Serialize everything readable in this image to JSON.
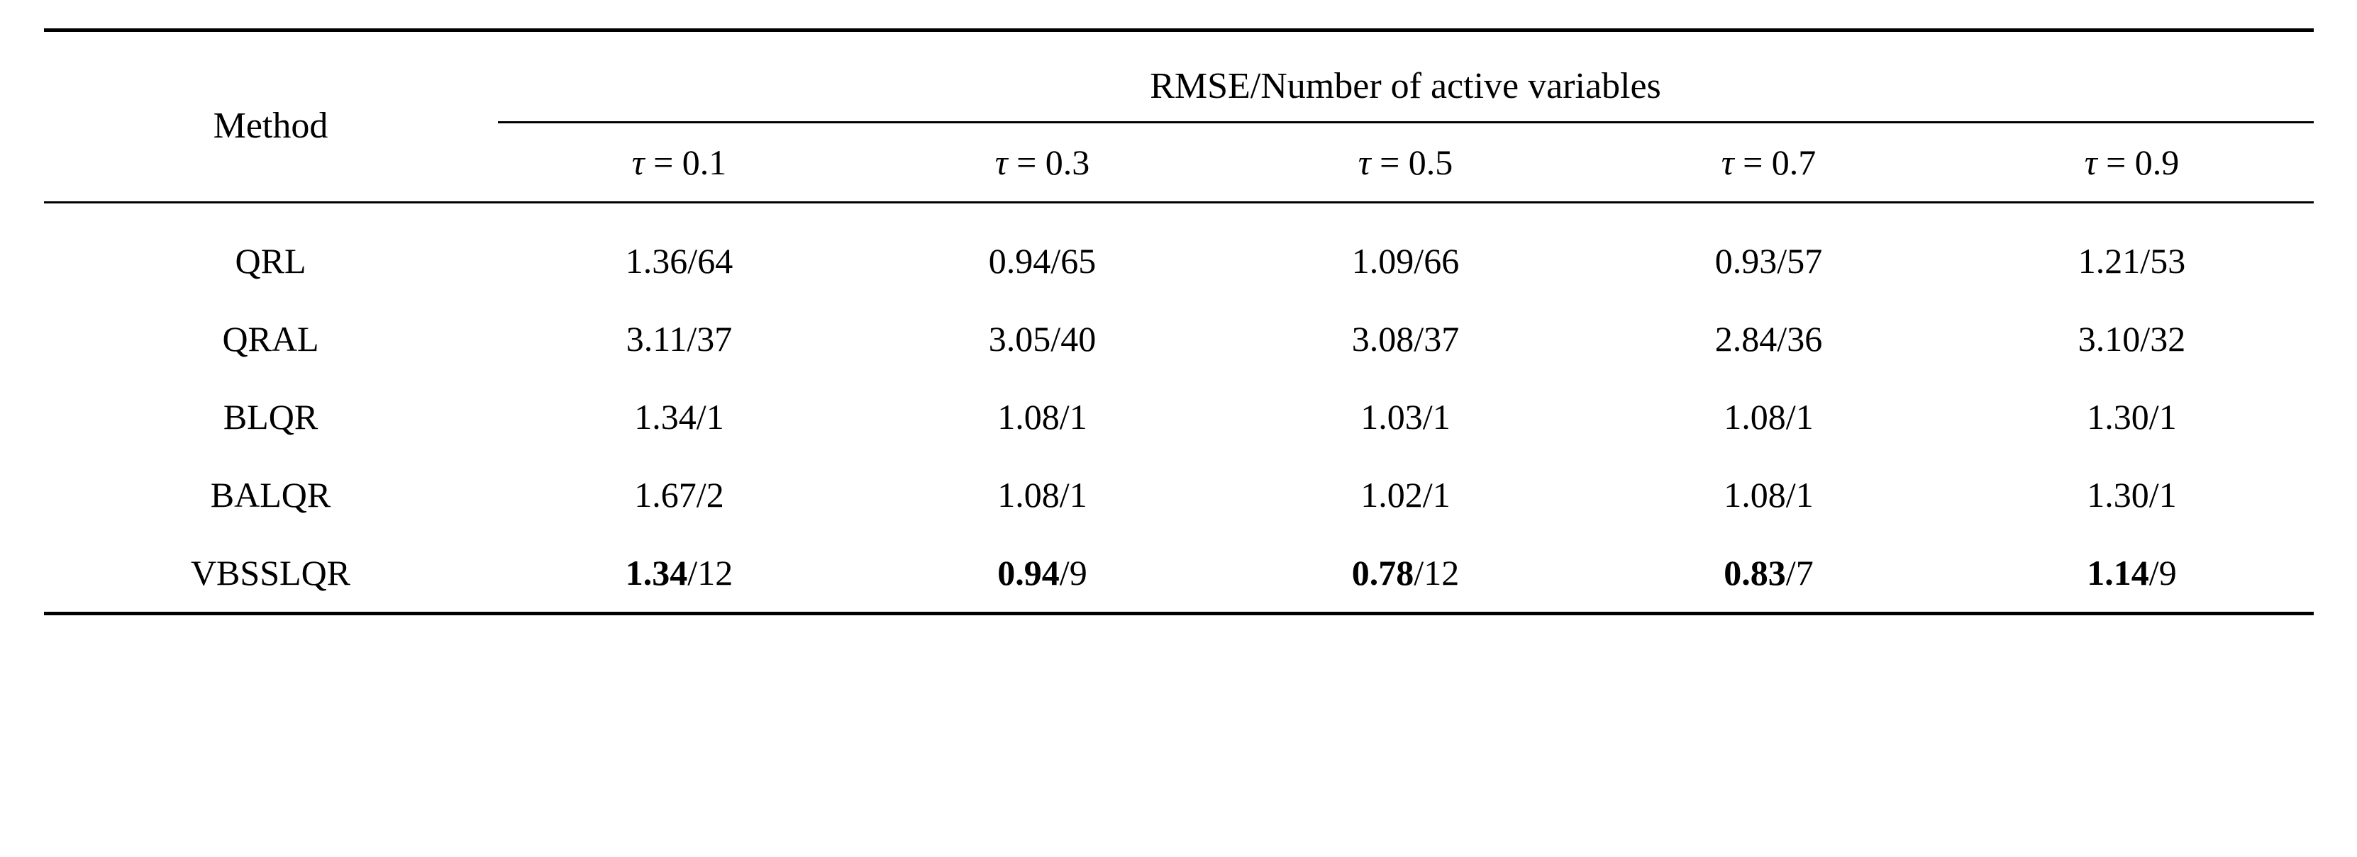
{
  "table": {
    "method_header": "Method",
    "spanner": "RMSE/Number of active variables",
    "tau_labels": [
      "0.1",
      "0.3",
      "0.5",
      "0.7",
      "0.9"
    ],
    "rows": [
      {
        "method": "QRL",
        "cells": [
          {
            "rmse": "1.36",
            "n": "64",
            "bold": false
          },
          {
            "rmse": "0.94",
            "n": "65",
            "bold": false
          },
          {
            "rmse": "1.09",
            "n": "66",
            "bold": false
          },
          {
            "rmse": "0.93",
            "n": "57",
            "bold": false
          },
          {
            "rmse": "1.21",
            "n": "53",
            "bold": false
          }
        ]
      },
      {
        "method": "QRAL",
        "cells": [
          {
            "rmse": "3.11",
            "n": "37",
            "bold": false
          },
          {
            "rmse": "3.05",
            "n": "40",
            "bold": false
          },
          {
            "rmse": "3.08",
            "n": "37",
            "bold": false
          },
          {
            "rmse": "2.84",
            "n": "36",
            "bold": false
          },
          {
            "rmse": "3.10",
            "n": "32",
            "bold": false
          }
        ]
      },
      {
        "method": "BLQR",
        "cells": [
          {
            "rmse": "1.34",
            "n": "1",
            "bold": false
          },
          {
            "rmse": "1.08",
            "n": "1",
            "bold": false
          },
          {
            "rmse": "1.03",
            "n": "1",
            "bold": false
          },
          {
            "rmse": "1.08",
            "n": "1",
            "bold": false
          },
          {
            "rmse": "1.30",
            "n": "1",
            "bold": false
          }
        ]
      },
      {
        "method": "BALQR",
        "cells": [
          {
            "rmse": "1.67",
            "n": "2",
            "bold": false
          },
          {
            "rmse": "1.08",
            "n": "1",
            "bold": false
          },
          {
            "rmse": "1.02",
            "n": "1",
            "bold": false
          },
          {
            "rmse": "1.08",
            "n": "1",
            "bold": false
          },
          {
            "rmse": "1.30",
            "n": "1",
            "bold": false
          }
        ]
      },
      {
        "method": "VBSSLQR",
        "cells": [
          {
            "rmse": "1.34",
            "n": "12",
            "bold": true
          },
          {
            "rmse": "0.94",
            "n": "9",
            "bold": true
          },
          {
            "rmse": "0.78",
            "n": "12",
            "bold": true
          },
          {
            "rmse": "0.83",
            "n": "7",
            "bold": true
          },
          {
            "rmse": "1.14",
            "n": "9",
            "bold": true
          }
        ]
      }
    ],
    "colors": {
      "background": "#ffffff",
      "rule": "#000000",
      "text": "#000000"
    },
    "fonts": {
      "body_size_pt": 50,
      "header_size_pt": 52
    }
  }
}
